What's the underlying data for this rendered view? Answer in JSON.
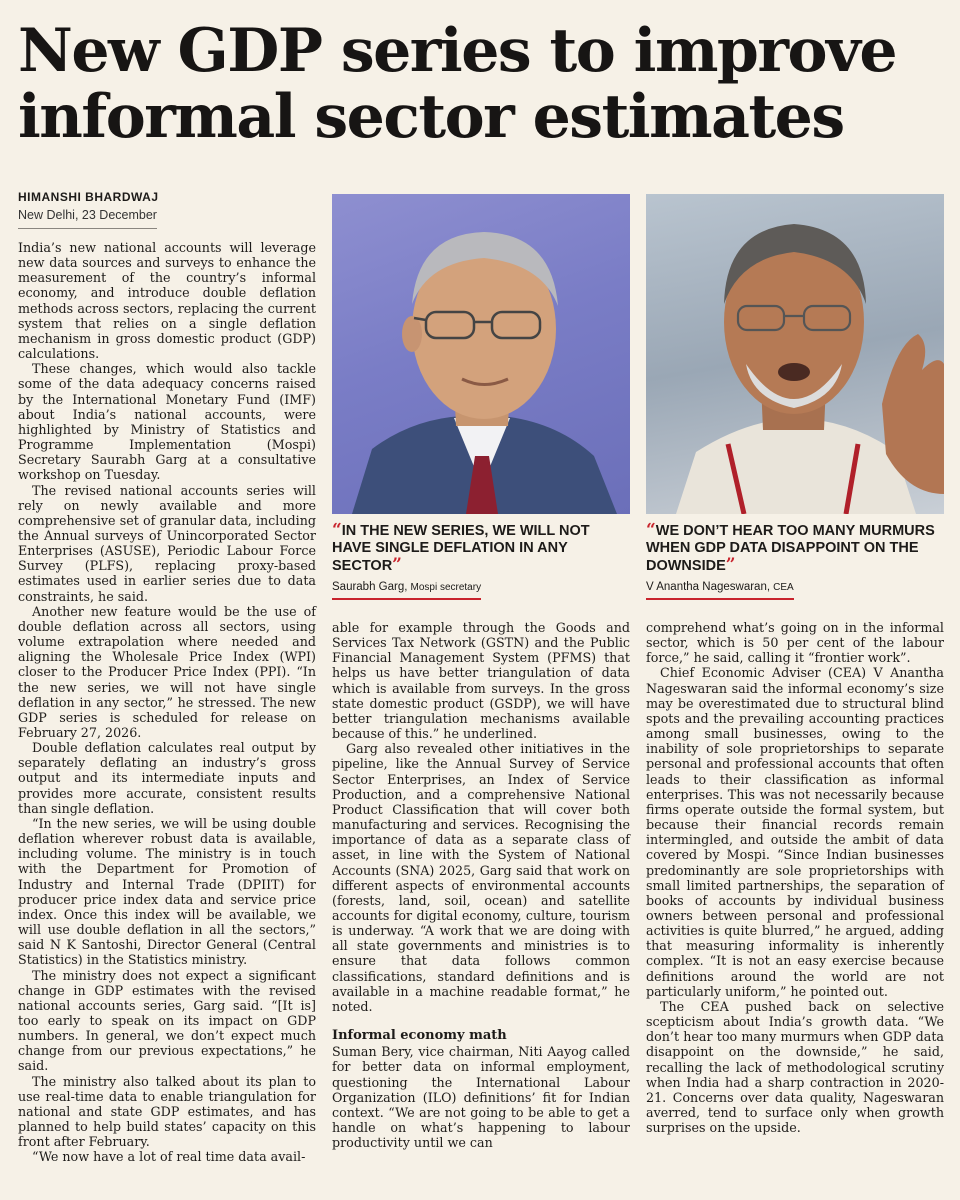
{
  "headline": "New GDP series to improve informal sector estimates",
  "byline": {
    "author": "HIMANSHI BHARDWAJ",
    "dateline": "New Delhi, 23 December"
  },
  "photos": [
    {
      "subject": "portrait-saurabh-garg"
    },
    {
      "subject": "portrait-v-anantha-nageswaran"
    }
  ],
  "quotes": [
    {
      "text": "IN THE NEW SERIES, WE WILL NOT HAVE SINGLE DEFLATION IN ANY SECTOR",
      "name": "Saurabh Garg,",
      "role": "Mospi secretary",
      "open": "“",
      "close": "”"
    },
    {
      "text": "WE DON’T HEAR TOO MANY MURMURS WHEN GDP DATA DISAPPOINT ON THE DOWNSIDE",
      "name": "V Anantha Nageswaran,",
      "role": "CEA",
      "open": "“",
      "close": "”"
    }
  ],
  "colors": {
    "accent": "#c8232c",
    "paper": "#f6f1e7"
  },
  "article": {
    "col1": [
      "India’s new national accounts will leverage new data sources and surveys to enhance the measurement of the country’s informal economy, and introduce double deflation methods across sectors, replacing the current system that relies on a single deflation mechanism in gross domestic product (GDP) calculations.",
      "These changes, which would also tackle some of the data adequacy concerns raised by the International Monetary Fund (IMF) about India’s national accounts, were highlighted by Ministry of Statistics and Programme Implementation (Mospi) Secretary Saurabh Garg at a consultative workshop on Tuesday.",
      "The revised national accounts series will rely on newly available and more comprehensive set of granular data, including the Annual surveys of Unincorporated Sector Enterprises (ASUSE), Periodic Labour Force Survey (PLFS), replacing proxy-based estimates used in earlier series due to data constraints, he said.",
      "Another new feature would be the use of double deflation across all sectors, using volume extrapolation where needed and aligning the Wholesale Price Index (WPI) closer to the Producer Price Index (PPI). “In the new series, we will not have single deflation in any sector,” he stressed. The new GDP series is scheduled for release on February 27, 2026.",
      "Double deflation calculates real output by separately deflating an industry’s gross output and its intermediate inputs and provides more accurate, consistent results than single deflation.",
      "“In the new series, we will be using double deflation wherever robust data is available, including volume. The ministry is in touch with the Department for Promotion of Industry and Internal Trade (DPIIT) for producer price index data and service price index. Once this index will be available, we will use double deflation in all the sectors,” said N K Santoshi, Director General (Central Statistics) in the Statistics ministry.",
      "The ministry does not expect a significant change in GDP estimates with the revised national accounts series, Garg said. “[It is] too early to speak on its impact on GDP numbers. In general, we don’t expect much change from our previous expectations,” he said.",
      "The ministry also talked about its plan to use real-time data to enable triangulation for national and state GDP estimates, and has planned to help build states’ capacity on this front after February.",
      "“We now have a lot of real time data avail-"
    ],
    "col2": [
      "able for example through the Goods and Services Tax Network (GSTN) and the Public Financial Management System (PFMS) that helps us have better triangulation of data which is available from surveys. In the gross state domestic product (GSDP), we will have better triangulation mechanisms available because of this.” he underlined.",
      "Garg also revealed other initiatives in the pipeline, like the Annual Survey of Service Sector Enterprises, an Index of Service Production, and a comprehensive National Product Classification that will cover both manufacturing and services. Recognising the importance of data as a separate class of asset, in line with the System of National Accounts (SNA) 2025, Garg said that work on different aspects of environmental accounts (forests, land, soil, ocean) and satellite accounts for digital economy, culture, tourism is underway. “A work that we are doing with all state governments and ministries is to ensure that data follows common classifications, standard definitions and is available in a machine readable format,” he noted."
    ],
    "subhead": "Informal economy math",
    "col2b": [
      "Suman Bery, vice chairman, Niti Aayog called for better data on informal employment, questioning the International Labour Organization (ILO) definitions’ fit for Indian context. “We are not going to be able to get a handle on what’s happening to labour productivity until we can"
    ],
    "col3": [
      "comprehend what’s going on in the informal sector, which is 50 per cent of the labour force,” he said, calling it “frontier work”.",
      "Chief Economic Adviser (CEA) V Anantha Nageswaran said the informal economy’s size may be overestimated due to structural blind spots and the prevailing accounting practices among small businesses, owing to the inability of sole proprietorships to separate personal and professional accounts that often leads to their classification as informal enterprises. This was not necessarily because firms operate outside the formal system, but because their financial records remain intermingled, and outside the ambit of data covered by Mospi. “Since Indian businesses predominantly are sole proprietorships with small limited partnerships, the separation of books of accounts by individual business owners between personal and professional activities is quite blurred,” he argued, adding that measuring informality is inherently complex. “It is not an easy exercise because definitions around the world are not particularly uniform,” he pointed out.",
      "The CEA pushed back on selective scepticism about India’s growth data. “We don’t hear too many murmurs when GDP data disappoint on the downside,” he said, recalling the lack of methodological scrutiny when India had a sharp contraction in 2020-21. Concerns over data quality, Nageswaran averred, tend to surface only when growth surprises on the upside."
    ]
  }
}
